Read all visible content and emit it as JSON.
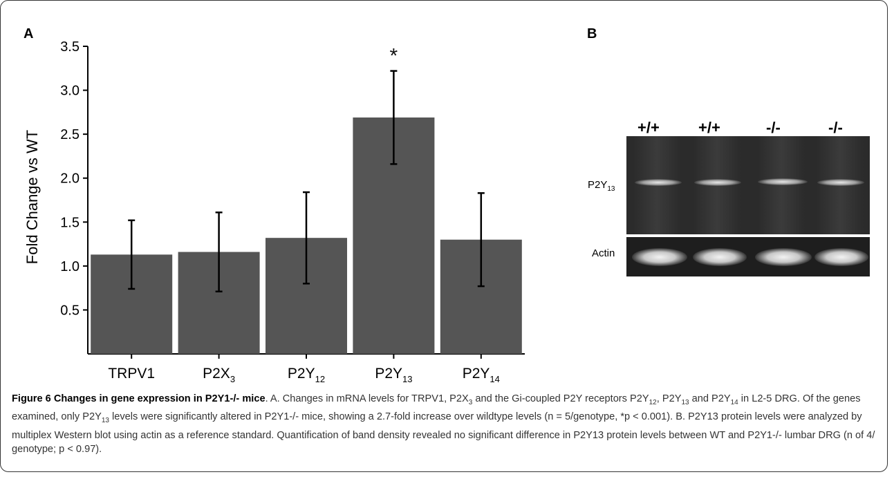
{
  "panel_a_letter": "A",
  "panel_b_letter": "B",
  "chart_data": {
    "type": "bar",
    "categories": [
      {
        "main": "TRPV1",
        "sub": ""
      },
      {
        "main": "P2X",
        "sub": "3"
      },
      {
        "main": "P2Y",
        "sub": "12"
      },
      {
        "main": "P2Y",
        "sub": "13"
      },
      {
        "main": "P2Y",
        "sub": "14"
      }
    ],
    "values": [
      1.13,
      1.16,
      1.32,
      2.69,
      1.3
    ],
    "errors": [
      0.39,
      0.45,
      0.52,
      0.53,
      0.53
    ],
    "ylabel": "Fold Change vs WT",
    "ylim": [
      0,
      3.5
    ],
    "yticks": [
      "0.5",
      "1.0",
      "1.5",
      "2.0",
      "2.5",
      "3.0",
      "3.5"
    ],
    "significance_marker": {
      "category_index": 3,
      "text": "*"
    },
    "bar_color": "#555555",
    "grid": false
  },
  "blot": {
    "genotypes": [
      "+/+",
      "+/+",
      "-/-",
      "-/-"
    ],
    "row_labels": [
      {
        "main": "P2Y",
        "sub": "13"
      },
      {
        "main": "Actin",
        "sub": ""
      }
    ]
  },
  "caption": {
    "figure_label": "Figure 6",
    "figure_title": "Changes in gene expression in P2Y1-/- mice",
    "t1": ". A. Changes in mRNA levels for TRPV1, P2X",
    "s1": "3",
    "t2": " and the Gi-coupled P2Y receptors P2Y",
    "s2": "12",
    "t3": ", P2Y",
    "s3": "13",
    "t4": " and P2Y",
    "s4": "14",
    "t5": " in L2-5 DRG. Of the genes examined, only P2Y",
    "s5": "13",
    "t6": " levels were significantly altered in P2Y1-/- mice, showing a 2.7-fold increase over wildtype levels (n = 5/genotype, *p < 0.001). B. P2Y13 protein levels were analyzed by multiplex Western blot using actin as a reference standard. Quantification of band density revealed no significant difference in P2Y13 protein levels between WT and P2Y1-/- lumbar DRG (n of 4/ genotype; p < 0.97)."
  }
}
